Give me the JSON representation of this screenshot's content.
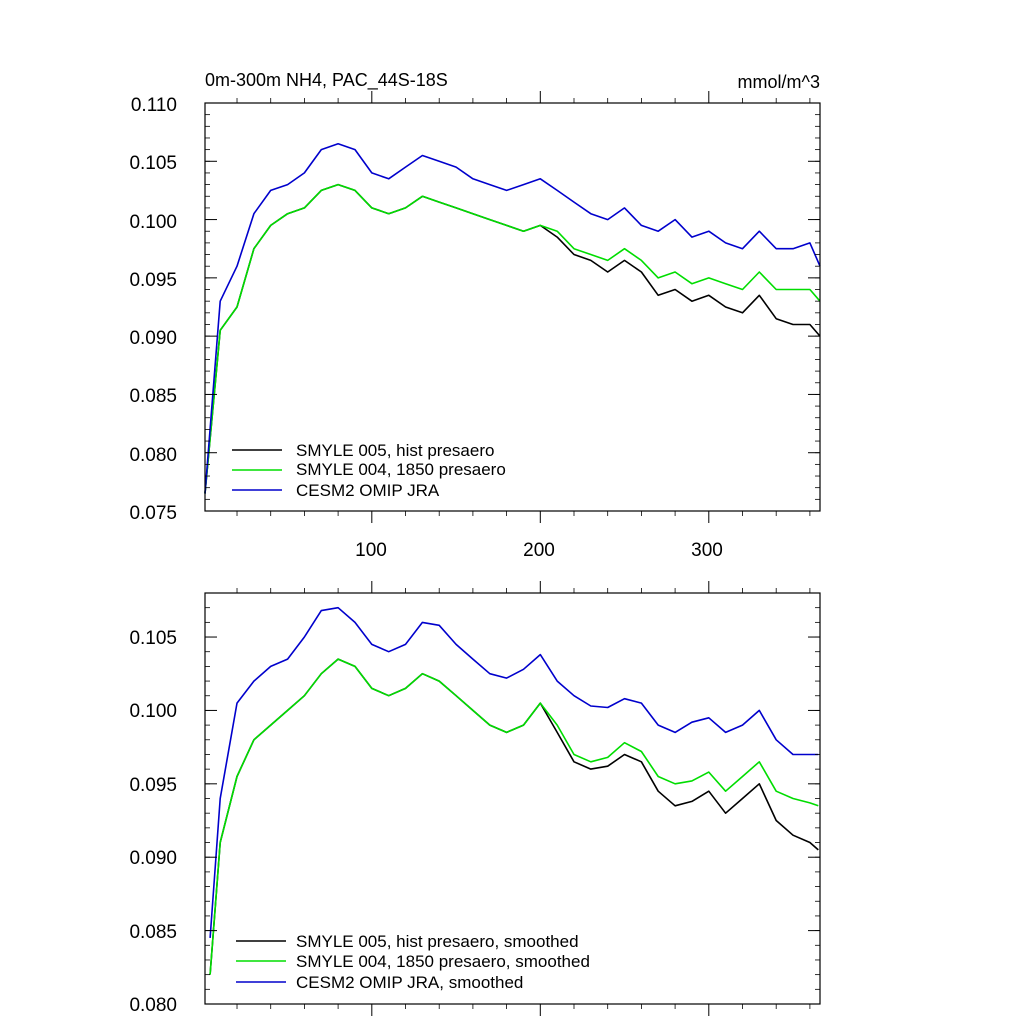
{
  "chart_data": [
    {
      "type": "line",
      "title": "0m-300m NH4, PAC_44S-18S",
      "units": "mmol/m^3",
      "xlabel": "",
      "ylabel": "",
      "xlim": [
        1,
        366
      ],
      "ylim": [
        0.075,
        0.11
      ],
      "xticks": [
        100,
        200,
        300
      ],
      "yticks": [
        "0.075",
        "0.080",
        "0.085",
        "0.090",
        "0.095",
        "0.100",
        "0.105",
        "0.110"
      ],
      "legend_position": "bottom-left",
      "series": [
        {
          "name": "SMYLE 005, hist presaero",
          "color": "#000000",
          "x": [
            1,
            10,
            20,
            30,
            40,
            50,
            60,
            70,
            80,
            90,
            100,
            110,
            120,
            130,
            140,
            150,
            160,
            170,
            180,
            190,
            200,
            210,
            220,
            230,
            240,
            250,
            260,
            270,
            280,
            290,
            300,
            310,
            320,
            330,
            340,
            350,
            360,
            366
          ],
          "values": [
            0.0765,
            0.0905,
            0.0925,
            0.0975,
            0.0995,
            0.1005,
            0.101,
            0.1025,
            0.103,
            0.1025,
            0.101,
            0.1005,
            0.101,
            0.102,
            0.1015,
            0.101,
            0.1005,
            0.1,
            0.0995,
            0.099,
            0.0995,
            0.0985,
            0.097,
            0.0965,
            0.0955,
            0.0965,
            0.0955,
            0.0935,
            0.094,
            0.093,
            0.0935,
            0.0925,
            0.092,
            0.0935,
            0.0915,
            0.091,
            0.091,
            0.09
          ]
        },
        {
          "name": "SMYLE 004, 1850 presaero",
          "color": "#00dd00",
          "x": [
            1,
            10,
            20,
            30,
            40,
            50,
            60,
            70,
            80,
            90,
            100,
            110,
            120,
            130,
            140,
            150,
            160,
            170,
            180,
            190,
            200,
            210,
            220,
            230,
            240,
            250,
            260,
            270,
            280,
            290,
            300,
            310,
            320,
            330,
            340,
            350,
            360,
            366
          ],
          "values": [
            0.0765,
            0.0905,
            0.0925,
            0.0975,
            0.0995,
            0.1005,
            0.101,
            0.1025,
            0.103,
            0.1025,
            0.101,
            0.1005,
            0.101,
            0.102,
            0.1015,
            0.101,
            0.1005,
            0.1,
            0.0995,
            0.099,
            0.0995,
            0.099,
            0.0975,
            0.097,
            0.0965,
            0.0975,
            0.0965,
            0.095,
            0.0955,
            0.0945,
            0.095,
            0.0945,
            0.094,
            0.0955,
            0.094,
            0.094,
            0.094,
            0.093
          ]
        },
        {
          "name": "CESM2 OMIP JRA",
          "color": "#0000cc",
          "x": [
            1,
            10,
            20,
            30,
            40,
            50,
            60,
            70,
            80,
            90,
            100,
            110,
            120,
            130,
            140,
            150,
            160,
            170,
            180,
            190,
            200,
            210,
            220,
            230,
            240,
            250,
            260,
            270,
            280,
            290,
            300,
            310,
            320,
            330,
            340,
            350,
            360,
            366
          ],
          "values": [
            0.0765,
            0.093,
            0.096,
            0.1005,
            0.1025,
            0.103,
            0.104,
            0.106,
            0.1065,
            0.106,
            0.104,
            0.1035,
            0.1045,
            0.1055,
            0.105,
            0.1045,
            0.1035,
            0.103,
            0.1025,
            0.103,
            0.1035,
            0.1025,
            0.1015,
            0.1005,
            0.1,
            0.101,
            0.0995,
            0.099,
            0.1,
            0.0985,
            0.099,
            0.098,
            0.0975,
            0.099,
            0.0975,
            0.0975,
            0.098,
            0.096
          ]
        }
      ]
    },
    {
      "type": "line",
      "title": "",
      "xlabel": "",
      "ylabel": "",
      "xlim": [
        1,
        366
      ],
      "ylim": [
        0.08,
        0.108
      ],
      "xticks": [
        100,
        200,
        300
      ],
      "yticks": [
        "0.080",
        "0.085",
        "0.090",
        "0.095",
        "0.100",
        "0.105"
      ],
      "legend_position": "bottom-left",
      "series": [
        {
          "name": "SMYLE 005, hist presaero, smoothed",
          "color": "#000000",
          "x": [
            4,
            10,
            20,
            30,
            40,
            50,
            60,
            70,
            80,
            90,
            100,
            110,
            120,
            130,
            140,
            150,
            160,
            170,
            180,
            190,
            200,
            210,
            220,
            230,
            240,
            250,
            260,
            270,
            280,
            290,
            300,
            310,
            320,
            330,
            340,
            350,
            360,
            365
          ],
          "values": [
            0.082,
            0.091,
            0.0955,
            0.098,
            0.099,
            0.1,
            0.101,
            0.1025,
            0.1035,
            0.103,
            0.1015,
            0.101,
            0.1015,
            0.1025,
            0.102,
            0.101,
            0.1,
            0.099,
            0.0985,
            0.099,
            0.1005,
            0.0985,
            0.0965,
            0.096,
            0.0962,
            0.097,
            0.0965,
            0.0945,
            0.0935,
            0.0938,
            0.0945,
            0.093,
            0.094,
            0.095,
            0.0925,
            0.0915,
            0.091,
            0.0905
          ]
        },
        {
          "name": "SMYLE 004, 1850 presaero, smoothed",
          "color": "#00dd00",
          "x": [
            4,
            10,
            20,
            30,
            40,
            50,
            60,
            70,
            80,
            90,
            100,
            110,
            120,
            130,
            140,
            150,
            160,
            170,
            180,
            190,
            200,
            210,
            220,
            230,
            240,
            250,
            260,
            270,
            280,
            290,
            300,
            310,
            320,
            330,
            340,
            350,
            360,
            365
          ],
          "values": [
            0.082,
            0.091,
            0.0955,
            0.098,
            0.099,
            0.1,
            0.101,
            0.1025,
            0.1035,
            0.103,
            0.1015,
            0.101,
            0.1015,
            0.1025,
            0.102,
            0.101,
            0.1,
            0.099,
            0.0985,
            0.099,
            0.1005,
            0.099,
            0.097,
            0.0965,
            0.0968,
            0.0978,
            0.0972,
            0.0955,
            0.095,
            0.0952,
            0.0958,
            0.0945,
            0.0955,
            0.0965,
            0.0945,
            0.094,
            0.0937,
            0.0935
          ]
        },
        {
          "name": "CESM2 OMIP JRA, smoothed",
          "color": "#0000cc",
          "x": [
            4,
            10,
            20,
            30,
            40,
            50,
            60,
            70,
            80,
            90,
            100,
            110,
            120,
            130,
            140,
            150,
            160,
            170,
            180,
            190,
            200,
            210,
            220,
            230,
            240,
            250,
            260,
            270,
            280,
            290,
            300,
            310,
            320,
            330,
            340,
            350,
            360,
            365
          ],
          "values": [
            0.0845,
            0.094,
            0.1005,
            0.102,
            0.103,
            0.1035,
            0.105,
            0.1068,
            0.107,
            0.106,
            0.1045,
            0.104,
            0.1045,
            0.106,
            0.1058,
            0.1045,
            0.1035,
            0.1025,
            0.1022,
            0.1028,
            0.1038,
            0.102,
            0.101,
            0.1003,
            0.1002,
            0.1008,
            0.1005,
            0.099,
            0.0985,
            0.0992,
            0.0995,
            0.0985,
            0.099,
            0.1,
            0.098,
            0.097,
            0.097,
            0.097
          ]
        }
      ]
    }
  ]
}
